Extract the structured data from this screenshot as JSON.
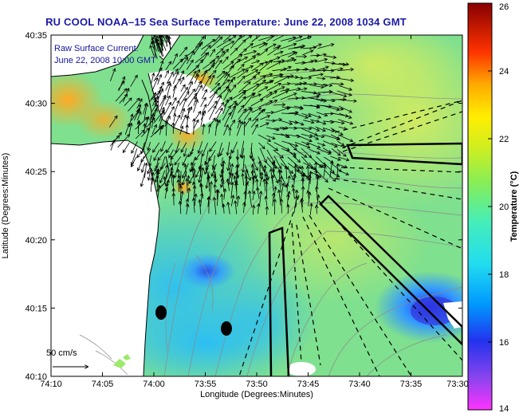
{
  "title": "RU COOL  NOAA–15  Sea Surface Temperature:  June 22, 2008 1034 GMT",
  "current_label": {
    "line1": "Raw Surface Current:",
    "line2": "June 22, 2008 10:00 GMT"
  },
  "scale_label": "50 cm/s",
  "x_axis": {
    "label": "Longitude (Degrees:Minutes)",
    "ticks": [
      "74:10",
      "74:05",
      "74:00",
      "73:55",
      "73:50",
      "73:45",
      "73:40",
      "73:35",
      "73:30"
    ]
  },
  "y_axis": {
    "label": "Latitude (Degrees:Minutes)",
    "ticks": [
      "40:35",
      "40:30",
      "40:25",
      "40:20",
      "40:15",
      "40:10"
    ]
  },
  "colorbar": {
    "label": "Temperature (°C)",
    "ticks": [
      "26",
      "24",
      "22",
      "20",
      "18",
      "16",
      "14"
    ],
    "min": 14,
    "max": 26
  }
}
